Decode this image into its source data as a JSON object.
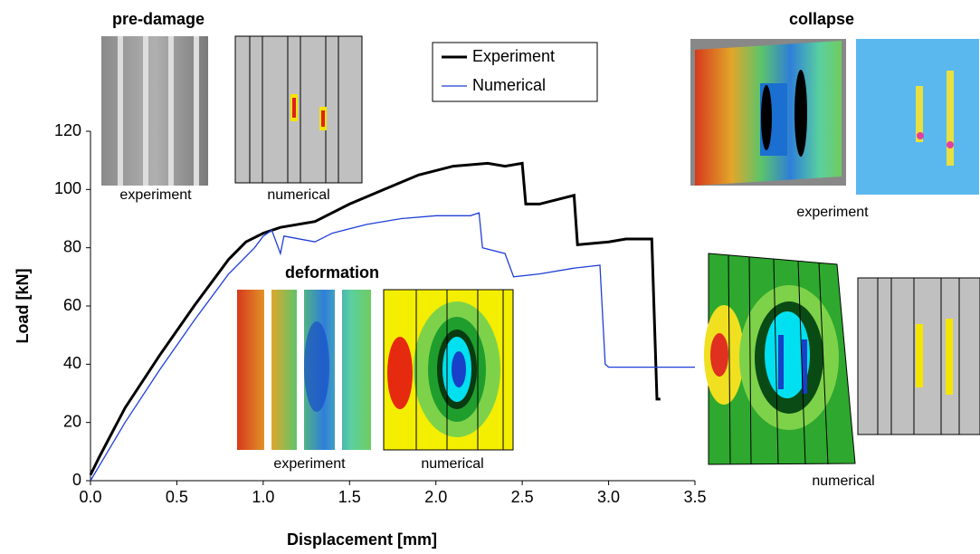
{
  "chart_data": {
    "type": "line",
    "xlabel": "Displacement [mm]",
    "ylabel": "Load [kN]",
    "xlim": [
      0,
      3.5
    ],
    "xticks": [
      {
        "value": 0,
        "label": "0.0"
      },
      0.5,
      {
        "value": 1,
        "label": "1.0"
      },
      1.5,
      {
        "value": 2,
        "label": "2.0"
      },
      2.5,
      {
        "value": 3,
        "label": "3.0"
      },
      3.5
    ],
    "ylim": [
      0,
      120
    ],
    "yticks": [
      0,
      20,
      40,
      60,
      80,
      100,
      120
    ],
    "grid": false,
    "legend": "top",
    "series": [
      {
        "name": "Experiment",
        "color": "#000000",
        "x": [
          0,
          0.05,
          0.2,
          0.4,
          0.6,
          0.8,
          0.9,
          1.0,
          1.1,
          1.3,
          1.5,
          1.7,
          1.9,
          2.1,
          2.3,
          2.4,
          2.5,
          2.52,
          2.6,
          2.8,
          2.82,
          3.0,
          3.1,
          3.25,
          3.28,
          3.3
        ],
        "values": [
          2,
          8,
          25,
          43,
          60,
          76,
          82,
          85,
          87,
          89,
          95,
          100,
          105,
          108,
          109,
          108,
          109,
          95,
          95,
          98,
          81,
          82,
          83,
          83,
          28,
          28
        ]
      },
      {
        "name": "Numerical",
        "color": "#1f3fd8",
        "x": [
          0,
          0.2,
          0.4,
          0.6,
          0.8,
          0.95,
          1.0,
          1.05,
          1.1,
          1.12,
          1.3,
          1.4,
          1.6,
          1.8,
          2.0,
          2.2,
          2.25,
          2.27,
          2.4,
          2.45,
          2.6,
          2.8,
          2.95,
          2.98,
          3.0,
          3.5
        ],
        "values": [
          0,
          20,
          38,
          55,
          71,
          80,
          84,
          86,
          78,
          84,
          82,
          85,
          88,
          90,
          91,
          91,
          92,
          80,
          78,
          70,
          71,
          73,
          74,
          40,
          39,
          39
        ]
      }
    ],
    "annotations": [
      "pre-damage",
      "experiment",
      "numerical",
      "deformation",
      "experiment",
      "numerical",
      "collapse",
      "experiment",
      "numerical"
    ]
  }
}
